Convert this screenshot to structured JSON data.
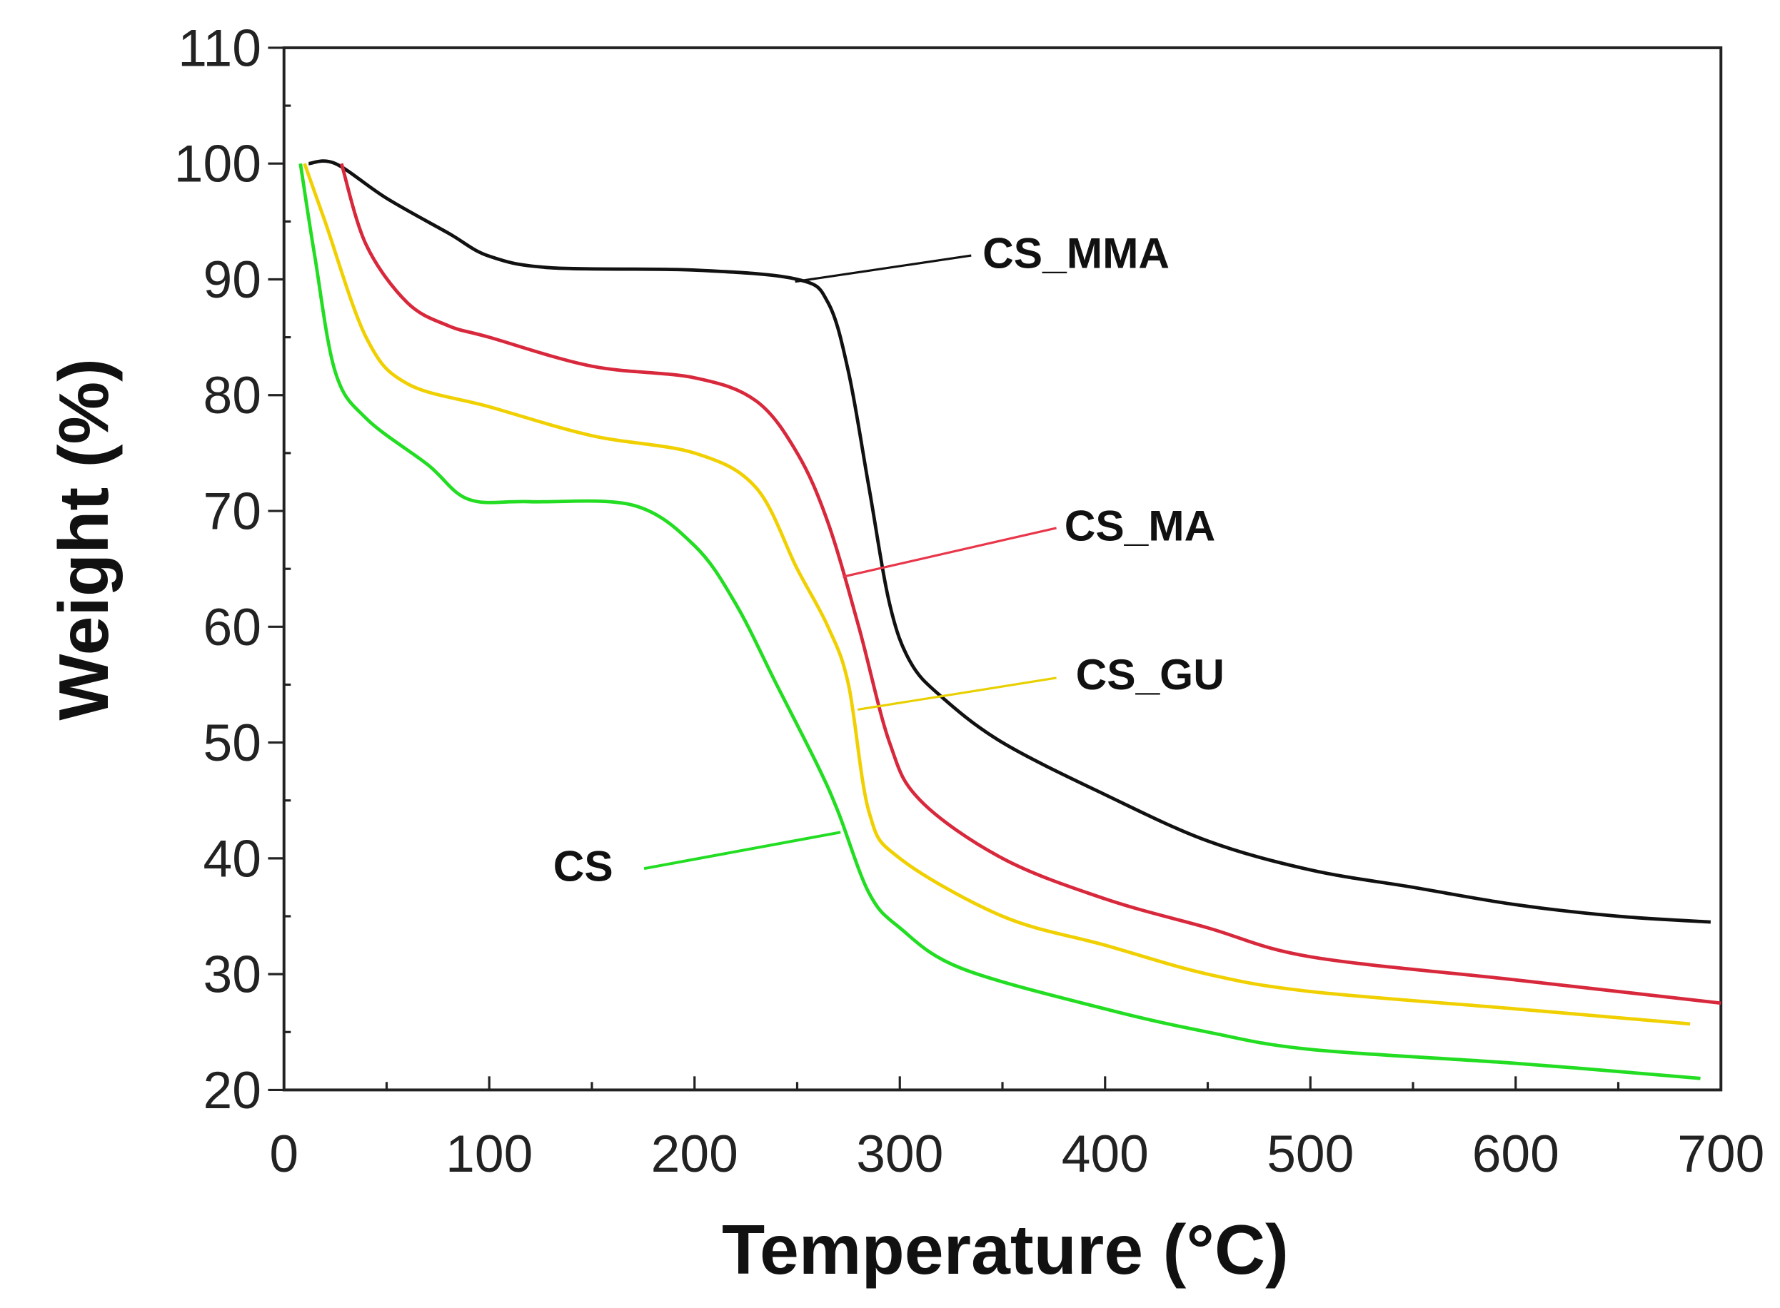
{
  "chart_data": {
    "type": "line",
    "title": "",
    "xlabel": "Temperature (°C)",
    "ylabel": "Weight (%)",
    "xlim": [
      0,
      700
    ],
    "ylim": [
      20,
      110
    ],
    "xticks": [
      0,
      100,
      200,
      300,
      400,
      500,
      600,
      700
    ],
    "yticks": [
      20,
      30,
      40,
      50,
      60,
      70,
      80,
      90,
      100,
      110
    ],
    "grid": false,
    "legend": "inline annotations",
    "series": [
      {
        "name": "CS_MMA",
        "color": "#111111",
        "x": [
          12,
          25,
          50,
          80,
          100,
          130,
          200,
          250,
          265,
          275,
          285,
          295,
          305,
          320,
          350,
          400,
          450,
          500,
          550,
          600,
          650,
          695
        ],
        "y": [
          100,
          100,
          97,
          94,
          92,
          91,
          90.8,
          90,
          88,
          82,
          72,
          62,
          57,
          54,
          50,
          45.5,
          41.5,
          39,
          37.5,
          36,
          35,
          34.5
        ]
      },
      {
        "name": "CS_MA",
        "color": "#d8283c",
        "x": [
          28,
          40,
          60,
          80,
          100,
          150,
          200,
          230,
          250,
          265,
          280,
          295,
          310,
          350,
          400,
          450,
          500,
          600,
          700
        ],
        "y": [
          100,
          93,
          88,
          86,
          85,
          82.5,
          81.5,
          79.5,
          75,
          69,
          60,
          50,
          45,
          40,
          36.5,
          34,
          31.5,
          29.5,
          27.5
        ]
      },
      {
        "name": "CS_GU",
        "color": "#f0d000",
        "x": [
          10,
          20,
          40,
          60,
          100,
          150,
          200,
          230,
          250,
          265,
          275,
          285,
          300,
          350,
          400,
          450,
          500,
          600,
          685
        ],
        "y": [
          100,
          95,
          85,
          81,
          79,
          76.5,
          75,
          72,
          65,
          60,
          55,
          44,
          40,
          35,
          32.5,
          30,
          28.5,
          27,
          25.7
        ]
      },
      {
        "name": "CS",
        "color": "#22dd22",
        "x": [
          8,
          15,
          25,
          40,
          70,
          90,
          120,
          170,
          200,
          220,
          240,
          260,
          270,
          285,
          300,
          330,
          400,
          450,
          500,
          600,
          690
        ],
        "y": [
          100,
          92,
          82,
          78,
          74,
          71,
          70.8,
          70.5,
          67,
          62,
          55,
          48,
          44,
          37,
          34,
          30.5,
          27,
          25,
          23.5,
          22.3,
          21
        ]
      }
    ]
  }
}
